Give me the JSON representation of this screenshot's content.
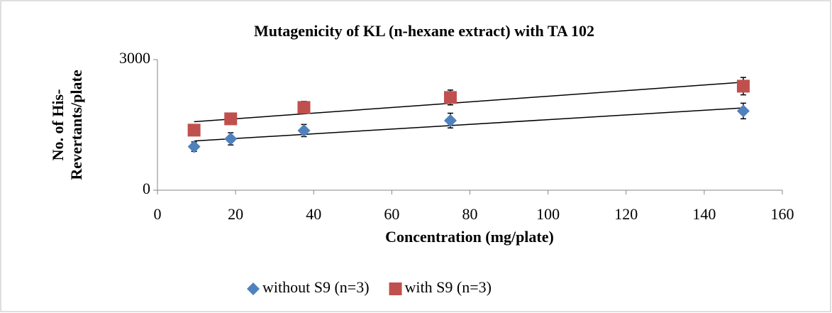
{
  "chart_data": {
    "type": "scatter",
    "title": "Mutagenicity of KL (n-hexane extract) with TA 102",
    "x_label": "Concentration (mg/plate)",
    "y_label": [
      "No. of His-",
      "Revertants/plate"
    ],
    "xlim": [
      0,
      160
    ],
    "xticks": [
      0,
      20,
      40,
      60,
      80,
      100,
      120,
      140,
      160
    ],
    "ylim": [
      0,
      3000
    ],
    "yticks": [
      0,
      3000
    ],
    "trendline": true,
    "series": [
      {
        "name": "without S9 (n=3)",
        "color": "#4f81bd",
        "marker": "diamond",
        "x": [
          9.375,
          18.75,
          37.5,
          75,
          150
        ],
        "values": [
          1000,
          1180,
          1370,
          1600,
          1820
        ],
        "errors": [
          110,
          140,
          140,
          170,
          180
        ]
      },
      {
        "name": "with S9 (n=3)",
        "color": "#c0504d",
        "marker": "square",
        "x": [
          9.375,
          18.75,
          37.5,
          75,
          150
        ],
        "values": [
          1380,
          1640,
          1900,
          2130,
          2390
        ],
        "errors": [
          90,
          120,
          140,
          170,
          200
        ]
      }
    ]
  }
}
